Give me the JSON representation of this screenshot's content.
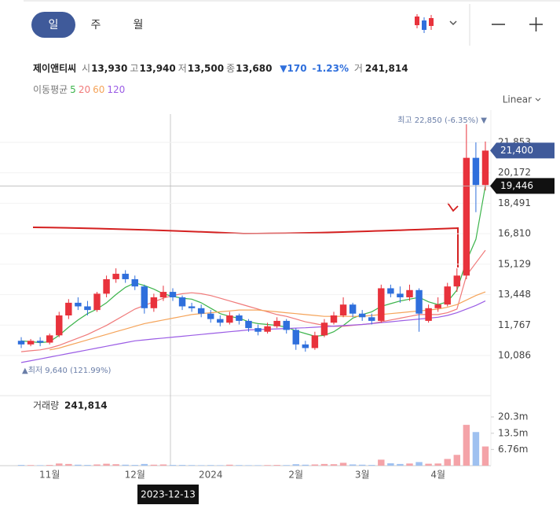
{
  "ui": {
    "tabs": [
      "일",
      "주",
      "월"
    ],
    "quote": {
      "name": "제이앤티씨",
      "fields": [
        {
          "label": "시",
          "value": "13,930"
        },
        {
          "label": "고",
          "value": "13,940"
        },
        {
          "label": "저",
          "value": "13,500"
        },
        {
          "label": "종",
          "value": "13,680"
        }
      ],
      "change_arrow": "▼",
      "change": "170",
      "change_pct": "-1.23%",
      "volume_label": "거",
      "volume": "241,814"
    },
    "crosshair_date": "2023-12-13"
  },
  "chart_data": [
    {
      "type": "candlestick",
      "categories": [
        null,
        null,
        null,
        "11월",
        null,
        null,
        null,
        null,
        null,
        null,
        null,
        null,
        "12월",
        null,
        null,
        null,
        null,
        null,
        null,
        null,
        "2024",
        null,
        null,
        null,
        null,
        null,
        null,
        null,
        null,
        "2월",
        null,
        null,
        null,
        null,
        null,
        null,
        "3월",
        null,
        null,
        null,
        null,
        null,
        null,
        null,
        "4월",
        null,
        null,
        null,
        null,
        null
      ],
      "open": [
        10900,
        10700,
        10900,
        10800,
        11200,
        12300,
        13000,
        12800,
        12600,
        13500,
        14300,
        14600,
        14300,
        13900,
        12700,
        13300,
        13600,
        13300,
        12800,
        12700,
        12400,
        12100,
        11900,
        12300,
        12000,
        11600,
        11400,
        11700,
        12000,
        11500,
        10700,
        10500,
        11200,
        11900,
        12300,
        12900,
        12400,
        12200,
        12000,
        13800,
        13500,
        13300,
        13700,
        12000,
        12700,
        12900,
        13900,
        14500,
        21000,
        19500
      ],
      "high": [
        11100,
        11000,
        11100,
        11300,
        12500,
        13200,
        13300,
        13100,
        13600,
        14500,
        14900,
        14800,
        14500,
        14000,
        13500,
        13940,
        13800,
        13400,
        13000,
        12900,
        12600,
        12300,
        12500,
        12400,
        12100,
        11800,
        11900,
        12200,
        12100,
        11600,
        10900,
        11400,
        12100,
        12500,
        13300,
        13000,
        12600,
        12400,
        14000,
        14000,
        13900,
        14000,
        13800,
        12900,
        13300,
        14100,
        14900,
        22850,
        21853,
        21900
      ],
      "low": [
        10500,
        10600,
        10600,
        10700,
        11100,
        12100,
        12600,
        12300,
        12500,
        13300,
        14100,
        14100,
        13700,
        12400,
        12500,
        13100,
        13100,
        12600,
        12500,
        12200,
        11900,
        11700,
        11800,
        11800,
        11400,
        11200,
        11300,
        11600,
        11300,
        10400,
        10300,
        10400,
        11100,
        11800,
        12200,
        12200,
        12000,
        11800,
        11900,
        13300,
        13000,
        13100,
        11400,
        11900,
        12500,
        12800,
        13600,
        14300,
        18000,
        19200
      ],
      "close": [
        10700,
        10900,
        10800,
        11200,
        12300,
        13000,
        12800,
        12600,
        13500,
        14300,
        14600,
        14300,
        13900,
        12700,
        13300,
        13600,
        13300,
        12800,
        12700,
        12400,
        12100,
        11900,
        12300,
        12000,
        11600,
        11400,
        11700,
        12000,
        11500,
        10700,
        10500,
        11200,
        11900,
        12300,
        12900,
        12400,
        12200,
        12000,
        13800,
        13500,
        13300,
        13700,
        12400,
        12700,
        12900,
        13900,
        14500,
        21000,
        19500,
        21400
      ],
      "up_color": "#e8323c",
      "down_color": "#2f6fdc",
      "legend_title": "이동평균",
      "series": [
        {
          "name": "5",
          "color": "#3cb44b",
          "values": [
            10900,
            10850,
            10800,
            10850,
            11200,
            11650,
            12050,
            12400,
            12650,
            13000,
            13450,
            13850,
            14100,
            13950,
            13750,
            13500,
            13350,
            13250,
            13200,
            13000,
            12700,
            12400,
            12250,
            12150,
            11950,
            11850,
            11800,
            11750,
            11650,
            11450,
            11300,
            11150,
            11200,
            11400,
            11750,
            12150,
            12350,
            12500,
            12800,
            12950,
            13100,
            13200,
            13300,
            13050,
            12900,
            13050,
            13700,
            15300,
            16500,
            19446
          ]
        },
        {
          "name": "20",
          "color": "#f07a7a",
          "values": [
            10300,
            10350,
            10400,
            10500,
            10650,
            10850,
            11050,
            11250,
            11500,
            11750,
            12050,
            12350,
            12650,
            12850,
            13050,
            13250,
            13400,
            13500,
            13550,
            13500,
            13400,
            13250,
            13100,
            12950,
            12800,
            12650,
            12500,
            12350,
            12250,
            12100,
            11950,
            11850,
            11750,
            11700,
            11700,
            11750,
            11800,
            11850,
            11950,
            12050,
            12150,
            12250,
            12350,
            12350,
            12350,
            12450,
            12650,
            14500,
            15200,
            15900
          ]
        },
        {
          "name": "60",
          "color": "#f5a45a",
          "values": [
            null,
            null,
            null,
            10400,
            10500,
            10650,
            10800,
            10950,
            11100,
            11250,
            11400,
            11550,
            11700,
            11850,
            11950,
            12050,
            12150,
            12250,
            12350,
            12400,
            12450,
            12500,
            12550,
            12600,
            12600,
            12600,
            12550,
            12500,
            12450,
            12400,
            12350,
            12300,
            12250,
            12250,
            12250,
            12250,
            12250,
            12300,
            12350,
            12400,
            12450,
            12500,
            12550,
            12600,
            12650,
            12750,
            12900,
            13150,
            13400,
            13600
          ]
        },
        {
          "name": "120",
          "color": "#9b5de5",
          "values": [
            9700,
            9800,
            9900,
            10000,
            10100,
            10200,
            10300,
            10400,
            10500,
            10600,
            10700,
            10800,
            10900,
            10950,
            11000,
            11050,
            11100,
            11150,
            11200,
            11250,
            11300,
            11350,
            11400,
            11450,
            11500,
            11520,
            11540,
            11560,
            11580,
            11600,
            11620,
            11650,
            11680,
            11710,
            11740,
            11770,
            11800,
            11850,
            11900,
            11950,
            12000,
            12050,
            12100,
            12150,
            12200,
            12300,
            12450,
            12650,
            12850,
            13100
          ]
        }
      ],
      "ylim": [
        8436,
        23199
      ],
      "yticks": [
        {
          "value": 10086,
          "label": "10,086"
        },
        {
          "value": 11767,
          "label": "11,767"
        },
        {
          "value": 13448,
          "label": "13,448"
        },
        {
          "value": 15129,
          "label": "15,129"
        },
        {
          "value": 16810,
          "label": "16,810"
        },
        {
          "value": 18491,
          "label": "18,491"
        },
        {
          "value": 20172,
          "label": "20,172"
        },
        {
          "value": 21853,
          "label": "21,853"
        }
      ],
      "grid": true,
      "scale_label": "Linear",
      "annotations": {
        "high": "최고 22,850 (-6.35%) ▼",
        "low": "▲최저 9,640 (121.99%)"
      },
      "price_markers": [
        {
          "value": 21400,
          "label": "21,400",
          "color": "#3f5a9a"
        },
        {
          "value": 19446,
          "label": "19,446",
          "color": "#111111"
        }
      ]
    },
    {
      "type": "bar",
      "title": "거래량",
      "title_value": "241,814",
      "values": [
        300000,
        250000,
        200000,
        300000,
        900000,
        700000,
        400000,
        300000,
        500000,
        800000,
        600000,
        400000,
        300000,
        700000,
        400000,
        500000,
        300000,
        300000,
        250000,
        200000,
        250000,
        200000,
        400000,
        250000,
        200000,
        200000,
        250000,
        300000,
        250000,
        600000,
        400000,
        500000,
        700000,
        600000,
        1200000,
        500000,
        400000,
        300000,
        2500000,
        1000000,
        700000,
        900000,
        1500000,
        800000,
        900000,
        2800000,
        4500000,
        17000000,
        14000000,
        8000000
      ],
      "up_color": "#f4a3a8",
      "down_color": "#9fc1f0",
      "ylim": [
        0,
        28500000
      ],
      "yticks": [
        {
          "value": 6760000,
          "label": "6.76m"
        },
        {
          "value": 13500000,
          "label": "13.5m"
        },
        {
          "value": 20300000,
          "label": "20.3m"
        }
      ]
    }
  ]
}
